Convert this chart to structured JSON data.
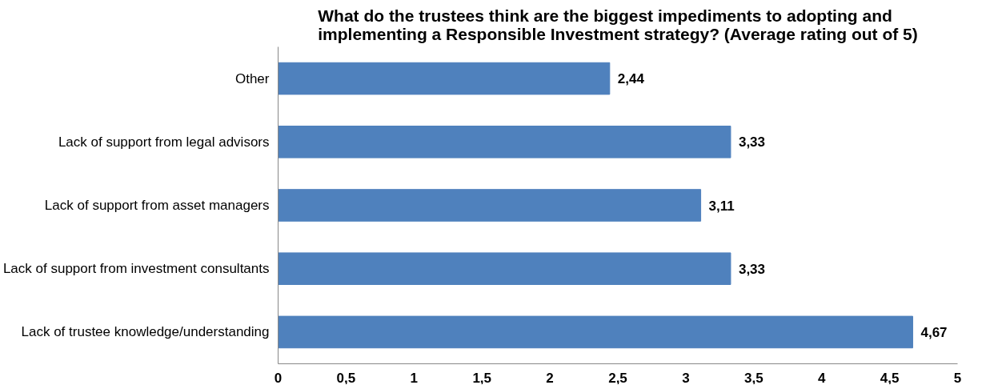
{
  "chart_data": {
    "type": "bar",
    "orientation": "horizontal",
    "title": "What do the trustees think are the biggest impediments to adopting and\nimplementing a Responsible Investment strategy? (Average rating out of 5)",
    "categories": [
      "Other",
      "Lack of support from legal advisors",
      "Lack of support from asset managers",
      "Lack of support from investment consultants",
      "Lack of trustee knowledge/understanding"
    ],
    "values": [
      2.44,
      3.33,
      3.11,
      3.33,
      4.67
    ],
    "value_labels": [
      "2,44",
      "3,33",
      "3,11",
      "3,33",
      "4,67"
    ],
    "color": "#4f81bd",
    "xlim": [
      0,
      5
    ],
    "xticks": [
      0,
      {
        "value": 0.5,
        "label": "0,5"
      },
      1,
      {
        "value": 1.5,
        "label": "1,5"
      },
      2,
      {
        "value": 2.5,
        "label": "2,5"
      },
      3,
      {
        "value": 3.5,
        "label": "3,5"
      },
      4,
      {
        "value": 4.5,
        "label": "4,5"
      },
      5
    ],
    "grid": false
  }
}
